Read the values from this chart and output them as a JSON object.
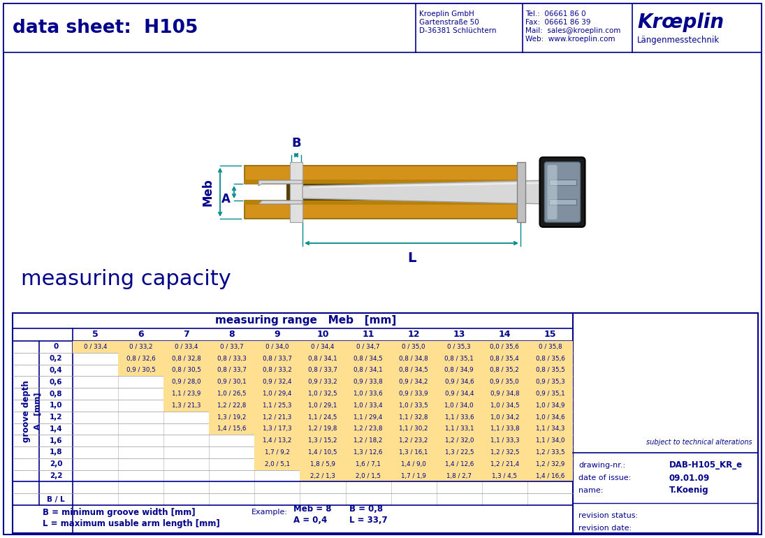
{
  "title_left": "data sheet:  H105",
  "company_name": "Kroeplin GmbH",
  "company_addr1": "Gartenstraße 50",
  "company_addr2": "D-36381 Schlüchtern",
  "tel": "Tel.:  06661 86 0",
  "fax": "Fax:  06661 86 39",
  "mail": "Mail:  sales@kroeplin.com",
  "web": "Web:  www.kroeplin.com",
  "brand1": "Krœplin",
  "brand2": "Längenmesstechnik",
  "measuring_capacity": "measuring capacity",
  "table_title": "measuring range   Meb   [mm]",
  "col_headers": [
    "5",
    "6",
    "7",
    "8",
    "9",
    "10",
    "11",
    "12",
    "13",
    "14",
    "15"
  ],
  "row_headers": [
    "0",
    "0,2",
    "0,4",
    "0,6",
    "0,8",
    "1,0",
    "1,2",
    "1,4",
    "1,6",
    "1,8",
    "2,0",
    "2,2",
    "",
    "B / L"
  ],
  "table_data": [
    [
      "0 / 33,4",
      "0 / 33,2",
      "0 / 33,4",
      "0 / 33,7",
      "0 / 34,0",
      "0 / 34,4",
      "0 / 34,7",
      "0 / 35,0",
      "0 / 35,3",
      "0,0 / 35,6",
      "0 / 35,8"
    ],
    [
      "",
      "0,8 / 32,6",
      "0,8 / 32,8",
      "0,8 / 33,3",
      "0,8 / 33,7",
      "0,8 / 34,1",
      "0,8 / 34,5",
      "0,8 / 34,8",
      "0,8 / 35,1",
      "0,8 / 35,4",
      "0,8 / 35,6"
    ],
    [
      "",
      "0,9 / 30,5",
      "0,8 / 30,5",
      "0,8 / 33,7",
      "0,8 / 33,2",
      "0,8 / 33,7",
      "0,8 / 34,1",
      "0,8 / 34,5",
      "0,8 / 34,9",
      "0,8 / 35,2",
      "0,8 / 35,5"
    ],
    [
      "",
      "",
      "0,9 / 28,0",
      "0,9 / 30,1",
      "0,9 / 32,4",
      "0,9 / 33,2",
      "0,9 / 33,8",
      "0,9 / 34,2",
      "0,9 / 34,6",
      "0,9 / 35,0",
      "0,9 / 35,3"
    ],
    [
      "",
      "",
      "1,1 / 23,9",
      "1,0 / 26,5",
      "1,0 / 29,4",
      "1,0 / 32,5",
      "1,0 / 33,6",
      "0,9 / 33,9",
      "0,9 / 34,4",
      "0,9 / 34,8",
      "0,9 / 35,1"
    ],
    [
      "",
      "",
      "1,3 / 21,3",
      "1,2 / 22,8",
      "1,1 / 25,3",
      "1,0 / 29,1",
      "1,0 / 33,4",
      "1,0 / 33,5",
      "1,0 / 34,0",
      "1,0 / 34,5",
      "1,0 / 34,9"
    ],
    [
      "",
      "",
      "",
      "1,3 / 19,2",
      "1,2 / 21,3",
      "1,1 / 24,5",
      "1,1 / 29,4",
      "1,1 / 32,8",
      "1,1 / 33,6",
      "1,0 / 34,2",
      "1,0 / 34,6"
    ],
    [
      "",
      "",
      "",
      "1,4 / 15,6",
      "1,3 / 17,3",
      "1,2 / 19,8",
      "1,2 / 23,8",
      "1,1 / 30,2",
      "1,1 / 33,1",
      "1,1 / 33,8",
      "1,1 / 34,3"
    ],
    [
      "",
      "",
      "",
      "",
      "1,4 / 13,2",
      "1,3 / 15,2",
      "1,2 / 18,2",
      "1,2 / 23,2",
      "1,2 / 32,0",
      "1,1 / 33,3",
      "1,1 / 34,0"
    ],
    [
      "",
      "",
      "",
      "",
      "1,7 / 9,2",
      "1,4 / 10,5",
      "1,3 / 12,6",
      "1,3 / 16,1",
      "1,3 / 22,5",
      "1,2 / 32,5",
      "1,2 / 33,5"
    ],
    [
      "",
      "",
      "",
      "",
      "2,0 / 5,1",
      "1,8 / 5,9",
      "1,6 / 7,1",
      "1,4 / 9,0",
      "1,4 / 12,6",
      "1,2 / 21,4",
      "1,2 / 32,9"
    ],
    [
      "",
      "",
      "",
      "",
      "",
      "2,2 / 1,3",
      "2,0 / 1,5",
      "1,7 / 1,9",
      "1,8 / 2,7",
      "1,3 / 4,5",
      "1,4 / 16,6"
    ],
    [
      "",
      "",
      "",
      "",
      "",
      "",
      "",
      "",
      "",
      "",
      ""
    ],
    [
      "",
      "",
      "",
      "",
      "",
      "",
      "",
      "",
      "",
      "",
      ""
    ]
  ],
  "footnote1": "B = minimum groove width [mm]",
  "footnote2": "L = maximum usable arm length [mm]",
  "example_label": "Example:",
  "example_meb": "Meb = 8",
  "example_b": "B = 0,8",
  "example_a": "A = 0,4",
  "example_l": "L = 33,7",
  "subject_text": "subject to technical alterations",
  "drawing_nr_label": "drawing-nr.:",
  "drawing_nr_value": "DAB-H105_KR_e",
  "date_label": "date of issue:",
  "date_value": "09.01.09",
  "name_label": "name:",
  "name_value": "T.Koenig",
  "rev_status_label": "revision status:",
  "rev_date_label": "revision date:",
  "dark_blue": "#00008B",
  "teal": "#008B8B",
  "gold": "#D4921A",
  "gold_dark": "#8B6800",
  "silver_light": "#E8E8E8",
  "silver_mid": "#C0C0C0",
  "silver_dark": "#909090",
  "cell_highlight": "#FFE090",
  "bg_white": "#FFFFFF"
}
